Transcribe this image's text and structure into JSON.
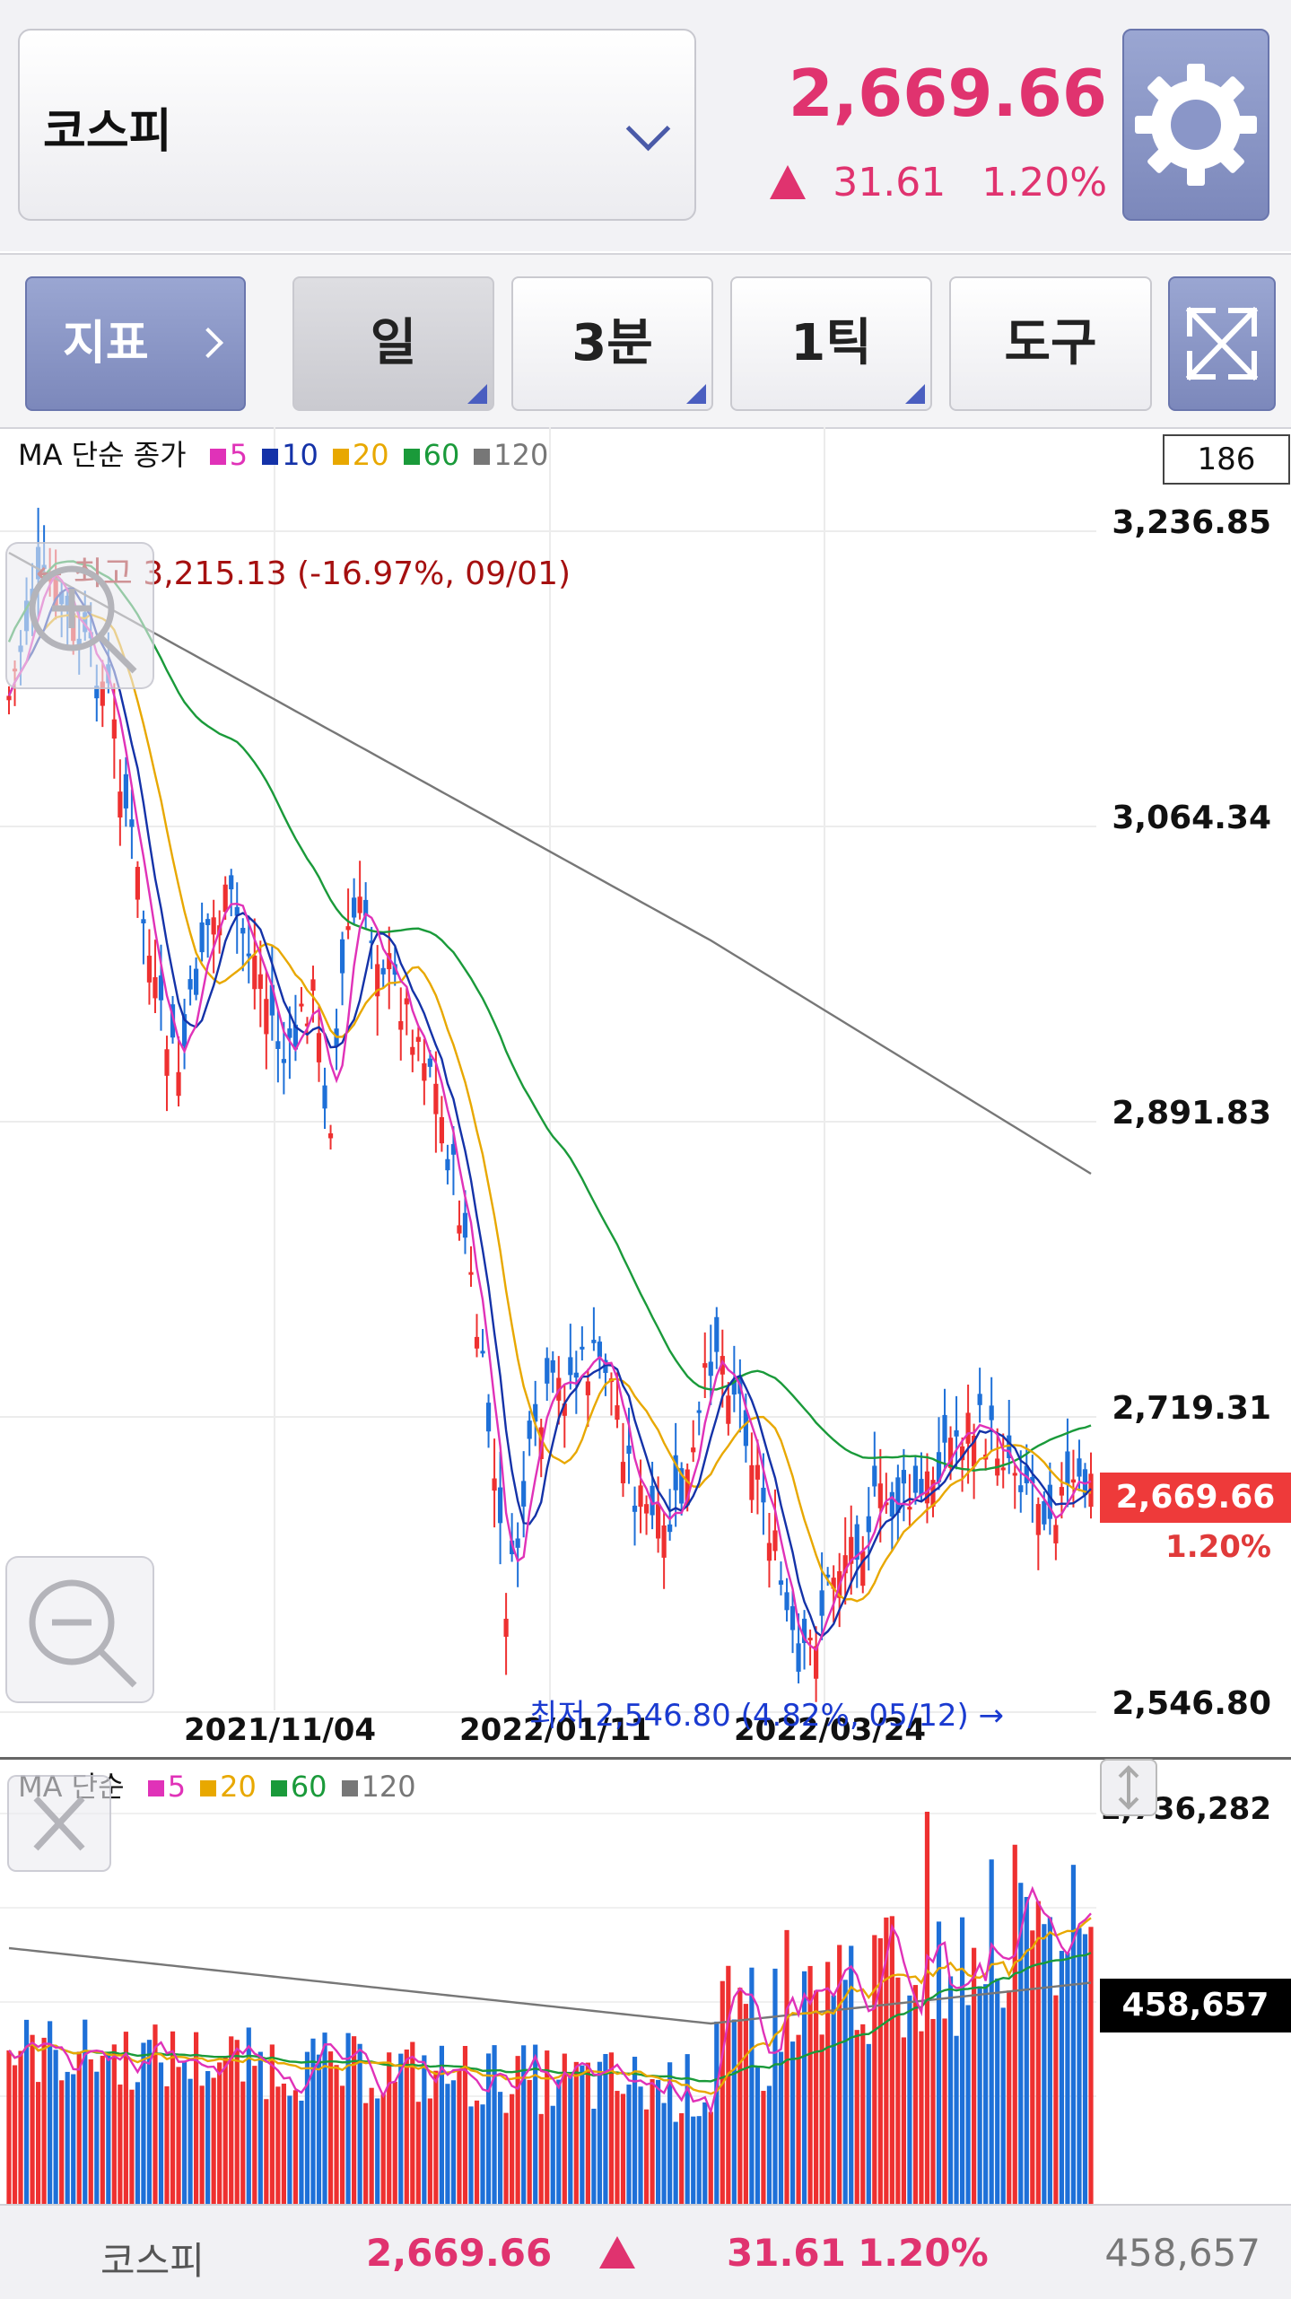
{
  "header": {
    "index_name": "코스피",
    "price": "2,669.66",
    "change": "31.61",
    "change_pct": "1.20%"
  },
  "toolbar": {
    "indicator_label": "지표",
    "tabs": [
      "일",
      "3분",
      "1틱"
    ],
    "tools_label": "도구"
  },
  "price_chart": {
    "legend_title": "MA 단순 종가",
    "ma_legend": [
      {
        "period": "5",
        "color": "#e032b8"
      },
      {
        "period": "10",
        "color": "#1432a8"
      },
      {
        "period": "20",
        "color": "#e8a800"
      },
      {
        "period": "60",
        "color": "#1a9a3a"
      },
      {
        "period": "120",
        "color": "#777777"
      }
    ],
    "candle_count": "186",
    "y_ticks": [
      "3,236.85",
      "3,064.34",
      "2,891.83",
      "2,719.31",
      "2,546.80"
    ],
    "x_ticks": [
      "2021/11/04",
      "2022/01/11",
      "2022/03/24"
    ],
    "current_price": "2,669.66",
    "current_pct": "1.20%",
    "high_annotation": "← 최고 3,215.13 (-16.97%, 09/01)",
    "low_annotation": "최저 2,546.80 (4.82%, 05/12) →",
    "up_color": "#ee3030",
    "down_color": "#1e70d8"
  },
  "volume_chart": {
    "legend_title": "MA 단순",
    "ma_legend": [
      {
        "period": "5",
        "color": "#e032b8"
      },
      {
        "period": "20",
        "color": "#e8a800"
      },
      {
        "period": "60",
        "color": "#1a9a3a"
      },
      {
        "period": "120",
        "color": "#777777"
      }
    ],
    "max_label": "1,736,282",
    "current_volume": "458,657"
  },
  "bottom_bar": {
    "name": "코스피",
    "price": "2,669.66",
    "change": "31.61",
    "change_pct": "1.20%",
    "volume": "458,657"
  }
}
